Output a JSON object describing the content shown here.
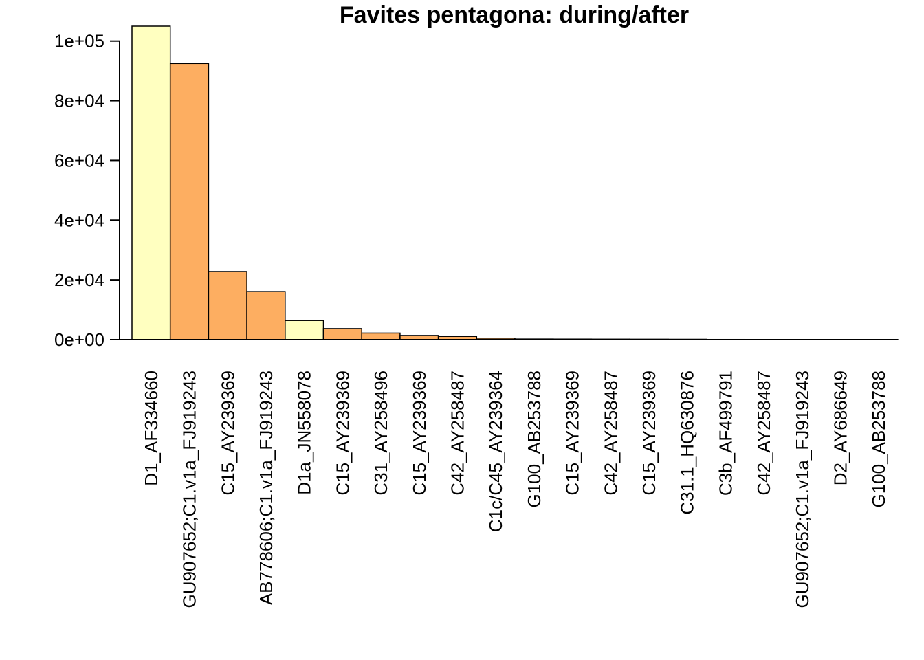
{
  "chart_data": {
    "type": "bar",
    "title": "Favites pentagona: during/after",
    "xlabel": "",
    "ylabel": "",
    "ylim": [
      0,
      105000
    ],
    "y_ticks": [
      0,
      20000,
      40000,
      60000,
      80000,
      100000
    ],
    "y_tick_labels": [
      "0e+00",
      "2e+04",
      "4e+04",
      "6e+04",
      "8e+04",
      "1e+05"
    ],
    "colors": {
      "light": "#FFFFC0",
      "orange": "#FDAE61",
      "stroke": "#000000"
    },
    "categories": [
      "D1_AF334660",
      "GU907652;C1.v1a_FJ919243",
      "C15_AY239369",
      "AB778606;C1.v1a_FJ919243",
      "D1a_JN558078",
      "C15_AY239369",
      "C31_AY258496",
      "C15_AY239369",
      "C42_AY258487",
      "C1c/C45_AY239364",
      "G100_AB253788",
      "C15_AY239369",
      "C42_AY258487",
      "C15_AY239369",
      "C31.1_HQ630876",
      "C3b_AF499791",
      "C42_AY258487",
      "GU907652;C1.v1a_FJ919243",
      "D2_AY686649",
      "G100_AB253788"
    ],
    "values": [
      105000,
      92500,
      22800,
      16100,
      6400,
      3700,
      2200,
      1400,
      1100,
      500,
      200,
      180,
      160,
      140,
      120,
      60,
      50,
      40,
      30,
      20
    ],
    "bar_colors": [
      "light",
      "orange",
      "orange",
      "orange",
      "light",
      "orange",
      "orange",
      "orange",
      "orange",
      "orange",
      "orange",
      "orange",
      "orange",
      "orange",
      "orange",
      "orange",
      "orange",
      "orange",
      "orange",
      "orange"
    ]
  }
}
